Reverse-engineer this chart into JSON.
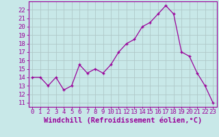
{
  "x": [
    0,
    1,
    2,
    3,
    4,
    5,
    6,
    7,
    8,
    9,
    10,
    11,
    12,
    13,
    14,
    15,
    16,
    17,
    18,
    19,
    20,
    21,
    22,
    23
  ],
  "y": [
    14.0,
    14.0,
    13.0,
    14.0,
    12.5,
    13.0,
    15.5,
    14.5,
    15.0,
    14.5,
    15.5,
    17.0,
    18.0,
    18.5,
    20.0,
    20.5,
    21.5,
    22.5,
    21.5,
    17.0,
    16.5,
    14.5,
    13.0,
    11.0
  ],
  "line_color": "#990099",
  "marker_color": "#990099",
  "bg_color": "#c8e8e8",
  "grid_color": "#b0c8c8",
  "xlabel": "Windchill (Refroidissement éolien,°C)",
  "ylabel_ticks": [
    11,
    12,
    13,
    14,
    15,
    16,
    17,
    18,
    19,
    20,
    21,
    22
  ],
  "ylim": [
    10.5,
    23.0
  ],
  "xlim": [
    -0.5,
    23.5
  ],
  "label_color": "#990099",
  "tick_color": "#990099",
  "xlabel_fontsize": 7.5,
  "tick_fontsize": 6.5
}
